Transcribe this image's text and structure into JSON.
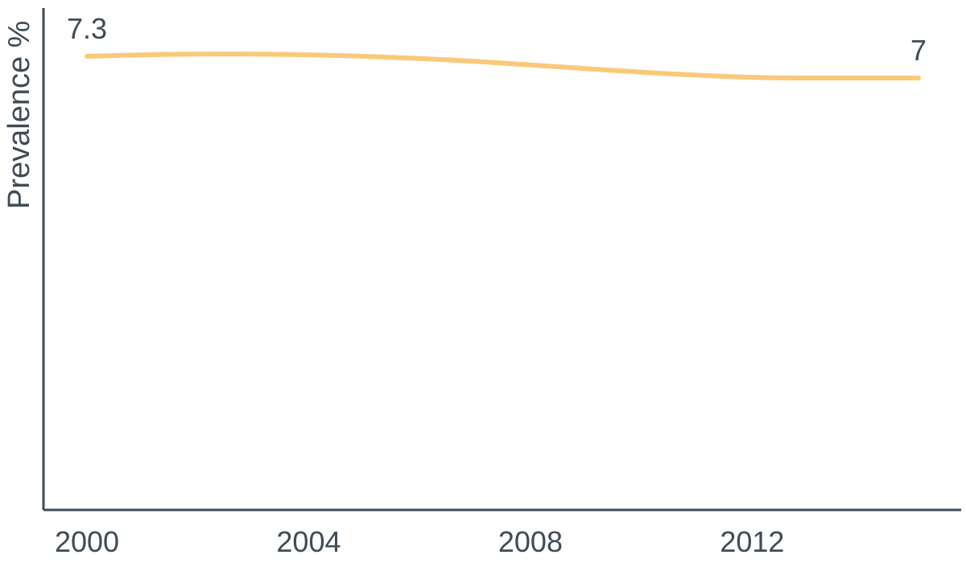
{
  "chart_data": {
    "type": "line",
    "title": "",
    "xlabel": "",
    "ylabel": "Prevalence %",
    "xlim": [
      2000,
      2015
    ],
    "ylim": [
      0,
      7.5
    ],
    "x_ticks": [
      "2000",
      "2004",
      "2008",
      "2012"
    ],
    "grid": false,
    "legend": "none",
    "series": [
      {
        "x": [
          2000,
          2001,
          2002,
          2003,
          2004,
          2005,
          2006,
          2007,
          2008,
          2009,
          2010,
          2011,
          2012,
          2013,
          2014,
          2015
        ],
        "y": [
          7.3,
          7.32,
          7.33,
          7.33,
          7.32,
          7.3,
          7.27,
          7.23,
          7.18,
          7.13,
          7.08,
          7.04,
          7.01,
          7.0,
          7.0,
          7.0
        ],
        "color": "#f9c97a"
      }
    ],
    "data_labels": [
      {
        "x": 2000,
        "y": 7.3,
        "text": "7.3"
      },
      {
        "x": 2015,
        "y": 7.0,
        "text": "7"
      }
    ]
  },
  "colors": {
    "axis": "#3f4b57",
    "text": "#3f4b57",
    "series": "#f9c97a"
  }
}
